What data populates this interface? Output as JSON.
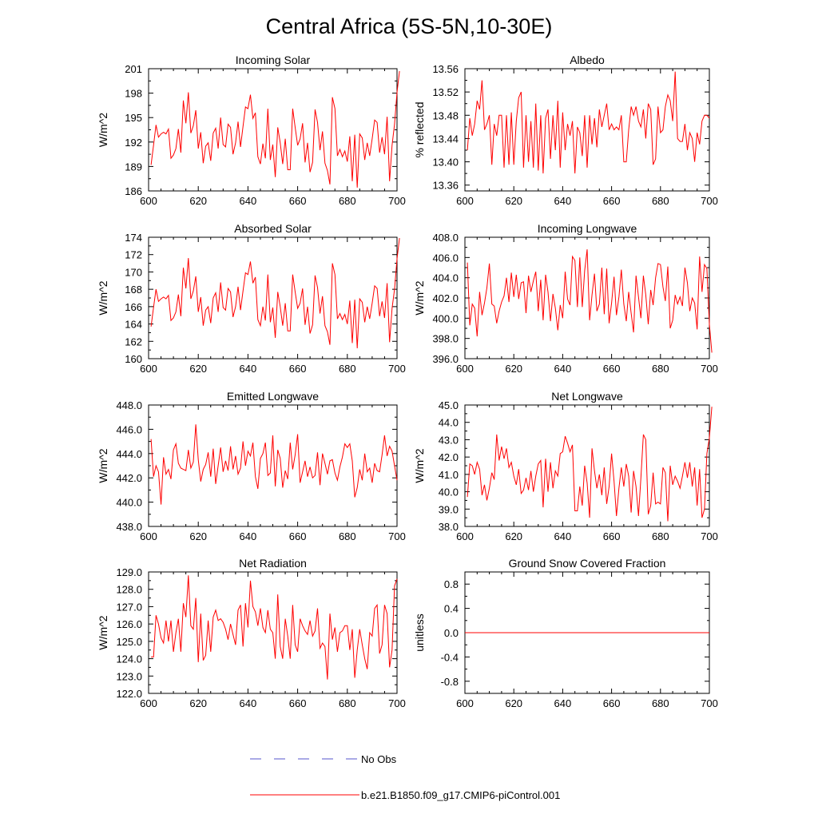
{
  "title": "Central Africa (5S-5N,10-30E)",
  "colors": {
    "model": "#ff0000",
    "obs": "#5555cc",
    "axis": "#000000"
  },
  "legend": {
    "placement": "bottom-center",
    "obs_label": "No Obs",
    "model_label": "b.e21.B1850.f09_g17.CMIP6-piControl.001"
  },
  "chart_data": [
    {
      "type": "line",
      "title": "Incoming Solar",
      "ylabel": "W/m^2",
      "xlim": [
        600,
        700
      ],
      "ylim": [
        186,
        201
      ],
      "xticks": [
        600,
        620,
        640,
        660,
        680,
        700
      ],
      "yticks": [
        186,
        189,
        192,
        195,
        198,
        201
      ],
      "ytick_labels": [
        "186",
        "189",
        "192",
        "195",
        "198",
        "201"
      ],
      "x_start": 601,
      "series": [
        {
          "values": [
            189.2,
            191.6,
            194.1,
            192.6,
            193.0,
            193.2,
            193.0,
            193.6,
            190.0,
            190.4,
            191.2,
            193.6,
            190.7,
            197.1,
            194.3,
            198.1,
            193.1,
            194.0,
            195.9,
            191.2,
            193.2,
            189.4,
            191.5,
            191.9,
            189.7,
            193.1,
            193.7,
            191.2,
            195.0,
            191.7,
            191.4,
            194.2,
            193.8,
            190.5,
            191.9,
            194.5,
            191.4,
            193.9,
            196.3,
            196.1,
            197.8,
            194.9,
            195.6,
            190.2,
            189.3,
            191.8,
            190.0,
            196.1,
            189.8,
            191.7,
            187.7,
            193.8,
            191.9,
            189.3,
            192.4,
            188.6,
            188.6,
            196.1,
            193.8,
            191.6,
            192.4,
            194.3,
            189.5,
            191.9,
            188.3,
            189.5,
            196.0,
            194.4,
            191.0,
            193.3,
            189.4,
            188.5,
            186.8,
            197.5,
            196.1,
            190.3,
            191.1,
            190.2,
            190.9,
            189.6,
            192.7,
            187.2,
            192.9,
            186.4,
            193.0,
            192.5,
            189.8,
            191.9,
            190.3,
            192.4,
            194.7,
            194.4,
            190.7,
            192.6,
            190.5,
            195.1,
            187.2,
            191.6,
            194.2,
            198.1,
            200.7
          ]
        }
      ]
    },
    {
      "type": "line",
      "title": "Albedo",
      "ylabel": "% reflected",
      "xlim": [
        600,
        700
      ],
      "ylim": [
        13.35,
        13.56
      ],
      "xticks": [
        600,
        620,
        640,
        660,
        680,
        700
      ],
      "yticks": [
        13.36,
        13.4,
        13.44,
        13.48,
        13.52,
        13.56
      ],
      "ytick_labels": [
        "13.36",
        "13.40",
        "13.44",
        "13.48",
        "13.52",
        "13.56"
      ],
      "x_start": 601,
      "series": [
        {
          "values": [
            13.42,
            13.475,
            13.445,
            13.465,
            13.505,
            13.49,
            13.54,
            13.455,
            13.465,
            13.48,
            13.395,
            13.465,
            13.445,
            13.48,
            13.48,
            13.39,
            13.48,
            13.395,
            13.485,
            13.395,
            13.47,
            13.51,
            13.52,
            13.39,
            13.48,
            13.4,
            13.47,
            13.39,
            13.5,
            13.385,
            13.48,
            13.38,
            13.475,
            13.49,
            13.405,
            13.48,
            13.42,
            13.505,
            13.39,
            13.485,
            13.42,
            13.465,
            13.445,
            13.47,
            13.38,
            13.46,
            13.45,
            13.41,
            13.48,
            13.39,
            13.48,
            13.43,
            13.475,
            13.425,
            13.49,
            13.46,
            13.48,
            13.5,
            13.455,
            13.465,
            13.455,
            13.46,
            13.455,
            13.48,
            13.4,
            13.4,
            13.455,
            13.495,
            13.48,
            13.495,
            13.47,
            13.46,
            13.49,
            13.44,
            13.5,
            13.49,
            13.395,
            13.405,
            13.495,
            13.45,
            13.455,
            13.495,
            13.515,
            13.505,
            13.47,
            13.555,
            13.44,
            13.435,
            13.435,
            13.465,
            13.42,
            13.45,
            13.44,
            13.4,
            13.45,
            13.43,
            13.47,
            13.48,
            13.48,
            13.475
          ]
        }
      ]
    },
    {
      "type": "line",
      "title": "Absorbed Solar",
      "ylabel": "W/m^2",
      "xlim": [
        600,
        700
      ],
      "ylim": [
        160,
        174
      ],
      "xticks": [
        600,
        620,
        640,
        660,
        680,
        700
      ],
      "yticks": [
        160,
        162,
        164,
        166,
        168,
        170,
        172,
        174
      ],
      "ytick_labels": [
        "160",
        "162",
        "164",
        "166",
        "168",
        "170",
        "172",
        "174"
      ],
      "x_start": 601,
      "series": [
        {
          "values": [
            163.7,
            165.9,
            168.0,
            166.6,
            166.9,
            167.1,
            166.9,
            167.3,
            164.4,
            164.7,
            165.4,
            167.4,
            164.9,
            170.5,
            168.1,
            171.6,
            166.9,
            167.8,
            169.5,
            165.4,
            167.1,
            163.8,
            165.6,
            166.0,
            164.1,
            167.0,
            167.6,
            165.4,
            168.8,
            165.9,
            165.6,
            168.1,
            167.7,
            164.8,
            166.0,
            168.3,
            165.6,
            167.8,
            169.9,
            169.7,
            171.2,
            168.7,
            169.4,
            164.5,
            163.8,
            166.0,
            164.4,
            169.7,
            164.2,
            165.9,
            162.4,
            167.7,
            166.0,
            163.8,
            166.4,
            163.2,
            163.2,
            169.7,
            167.7,
            165.8,
            166.4,
            168.1,
            163.9,
            166.0,
            162.9,
            163.9,
            169.6,
            168.2,
            165.2,
            167.2,
            163.8,
            163.1,
            161.6,
            171.0,
            169.7,
            164.6,
            165.2,
            164.5,
            165.1,
            164.0,
            166.7,
            161.8,
            166.8,
            161.2,
            166.9,
            166.5,
            164.2,
            166.0,
            164.6,
            166.4,
            168.4,
            168.1,
            164.9,
            166.6,
            164.7,
            168.7,
            161.9,
            165.8,
            168.0,
            171.5,
            173.9
          ]
        }
      ]
    },
    {
      "type": "line",
      "title": "Incoming Longwave",
      "ylabel": "W/m^2",
      "xlim": [
        600,
        700
      ],
      "ylim": [
        396,
        408
      ],
      "xticks": [
        600,
        620,
        640,
        660,
        680,
        700
      ],
      "yticks": [
        396,
        398,
        400,
        402,
        404,
        406,
        408
      ],
      "ytick_labels": [
        "396.0",
        "398.0",
        "400.0",
        "402.0",
        "404.0",
        "406.0",
        "408.0"
      ],
      "x_start": 601,
      "series": [
        {
          "values": [
            405.5,
            399.3,
            401.4,
            401.0,
            398.2,
            402.6,
            400.3,
            401.5,
            403.0,
            405.4,
            401.4,
            401.2,
            399.5,
            400.7,
            401.6,
            402.2,
            404.0,
            401.6,
            404.5,
            402.1,
            404.3,
            401.9,
            403.5,
            403.6,
            400.5,
            404.2,
            402.6,
            403.7,
            404.6,
            400.7,
            403.8,
            399.8,
            404.3,
            402.6,
            399.7,
            402.4,
            401.0,
            398.8,
            401.3,
            400.0,
            404.6,
            401.9,
            401.3,
            406.1,
            405.7,
            401.1,
            406.0,
            401.1,
            404.7,
            406.8,
            399.8,
            402.3,
            404.4,
            400.7,
            401.4,
            405.0,
            400.4,
            404.9,
            399.5,
            401.5,
            404.1,
            400.3,
            402.1,
            404.8,
            401.4,
            399.7,
            402.6,
            400.5,
            398.6,
            404.2,
            402.1,
            400.0,
            404.2,
            402.3,
            399.4,
            402.8,
            401.3,
            404.0,
            405.4,
            405.3,
            403.1,
            401.7,
            405.1,
            399.0,
            399.8,
            402.3,
            401.4,
            402.1,
            401.2,
            405.0,
            403.5,
            400.7,
            402.0,
            401.5,
            398.9,
            406.1,
            402.6,
            405.3,
            404.9,
            399.4,
            396.6
          ]
        }
      ]
    },
    {
      "type": "line",
      "title": "Emitted Longwave",
      "ylabel": "W/m^2",
      "xlim": [
        600,
        700
      ],
      "ylim": [
        438,
        448
      ],
      "xticks": [
        600,
        620,
        640,
        660,
        680,
        700
      ],
      "yticks": [
        438,
        440,
        442,
        444,
        446,
        448
      ],
      "ytick_labels": [
        "438.0",
        "440.0",
        "442.0",
        "444.0",
        "446.0",
        "448.0"
      ],
      "x_start": 601,
      "series": [
        {
          "values": [
            445.2,
            442.1,
            443.0,
            442.5,
            439.8,
            443.7,
            442.3,
            442.7,
            441.9,
            444.3,
            444.8,
            443.2,
            442.8,
            442.7,
            442.6,
            444.3,
            442.8,
            443.3,
            446.4,
            443.5,
            441.7,
            442.7,
            443.1,
            444.1,
            442.1,
            444.4,
            441.5,
            443.0,
            444.5,
            442.5,
            443.4,
            442.6,
            444.6,
            442.7,
            443.8,
            442.3,
            442.8,
            445.0,
            443.0,
            444.2,
            443.8,
            444.9,
            442.1,
            441.1,
            443.6,
            444.0,
            444.9,
            442.2,
            442.4,
            445.5,
            441.3,
            444.3,
            443.6,
            441.2,
            442.6,
            441.9,
            444.9,
            442.7,
            443.9,
            445.6,
            441.6,
            442.5,
            443.4,
            442.1,
            442.9,
            442.0,
            442.2,
            444.1,
            441.4,
            444.0,
            443.2,
            442.3,
            443.4,
            443.5,
            442.4,
            441.8,
            442.9,
            443.7,
            444.8,
            444.5,
            444.8,
            443.4,
            440.4,
            441.2,
            442.7,
            441.8,
            444.0,
            442.5,
            442.8,
            441.6,
            443.2,
            442.6,
            442.5,
            443.9,
            445.5,
            443.8,
            444.6,
            444.2,
            443.0,
            441.8
          ]
        }
      ]
    },
    {
      "type": "line",
      "title": "Net Longwave",
      "ylabel": "W/m^2",
      "xlim": [
        600,
        700
      ],
      "ylim": [
        38,
        45
      ],
      "xticks": [
        600,
        620,
        640,
        660,
        680,
        700
      ],
      "yticks": [
        38,
        39,
        40,
        41,
        42,
        43,
        44,
        45
      ],
      "ytick_labels": [
        "38.0",
        "39.0",
        "40.0",
        "41.0",
        "42.0",
        "43.0",
        "44.0",
        "45.0"
      ],
      "x_start": 601,
      "series": [
        {
          "values": [
            39.7,
            41.6,
            41.5,
            41.0,
            41.7,
            41.3,
            39.8,
            40.4,
            39.5,
            40.2,
            41.1,
            40.7,
            43.3,
            41.8,
            42.6,
            41.9,
            42.5,
            41.4,
            41.7,
            40.9,
            40.4,
            41.3,
            39.9,
            40.1,
            40.8,
            40.1,
            41.2,
            40.0,
            40.9,
            41.6,
            41.8,
            39.1,
            41.9,
            40.0,
            41.7,
            40.2,
            41.2,
            40.9,
            42.2,
            42.3,
            43.2,
            42.8,
            42.3,
            42.7,
            38.9,
            38.9,
            40.3,
            39.2,
            41.5,
            40.5,
            38.5,
            42.5,
            41.2,
            40.2,
            41.0,
            39.8,
            41.4,
            39.3,
            40.3,
            42.2,
            40.6,
            38.6,
            40.2,
            41.4,
            40.3,
            41.6,
            40.9,
            38.8,
            41.2,
            40.3,
            38.6,
            40.8,
            43.3,
            43.0,
            38.7,
            39.2,
            41.1,
            39.3,
            39.4,
            39.3,
            41.4,
            41.1,
            38.3,
            41.5,
            40.4,
            40.9,
            40.6,
            40.2,
            40.9,
            41.7,
            40.8,
            41.7,
            40.3,
            41.4,
            39.2,
            41.3,
            38.5,
            39.0,
            42.2,
            43.1,
            44.9
          ]
        }
      ]
    },
    {
      "type": "line",
      "title": "Net Radiation",
      "ylabel": "W/m^2",
      "xlim": [
        600,
        700
      ],
      "ylim": [
        122,
        129
      ],
      "xticks": [
        600,
        620,
        640,
        660,
        680,
        700
      ],
      "yticks": [
        122,
        123,
        124,
        125,
        126,
        127,
        128,
        129
      ],
      "ytick_labels": [
        "122.0",
        "123.0",
        "124.0",
        "125.0",
        "126.0",
        "127.0",
        "128.0",
        "129.0"
      ],
      "x_start": 601,
      "series": [
        {
          "values": [
            124.1,
            124.1,
            126.5,
            126.0,
            125.2,
            124.9,
            126.2,
            125.0,
            126.2,
            124.4,
            125.5,
            126.3,
            124.4,
            127.2,
            126.4,
            128.8,
            125.9,
            125.7,
            127.5,
            123.8,
            126.6,
            123.9,
            124.2,
            126.2,
            124.4,
            126.4,
            126.8,
            126.2,
            126.3,
            126.1,
            125.7,
            125.1,
            126.0,
            125.4,
            124.8,
            126.8,
            127.1,
            124.7,
            127.2,
            125.8,
            128.5,
            127.0,
            126.7,
            125.9,
            126.9,
            125.8,
            125.5,
            126.8,
            125.7,
            125.5,
            124.0,
            127.7,
            124.7,
            124.0,
            126.3,
            125.3,
            124.0,
            127.1,
            124.8,
            124.4,
            126.3,
            125.9,
            125.6,
            125.4,
            126.2,
            125.3,
            125.6,
            126.9,
            124.6,
            124.9,
            124.7,
            122.8,
            126.6,
            125.1,
            125.8,
            124.4,
            125.5,
            125.6,
            125.9,
            125.9,
            124.5,
            125.7,
            122.9,
            124.5,
            125.7,
            124.8,
            124.0,
            123.4,
            125.5,
            125.3,
            126.9,
            127.1,
            124.3,
            124.8,
            127.1,
            126.6,
            123.5,
            124.5,
            128.2,
            128.6
          ]
        }
      ]
    },
    {
      "type": "line",
      "title": "Ground Snow Covered Fraction",
      "ylabel": "unitless",
      "xlim": [
        600,
        700
      ],
      "ylim": [
        -1.0,
        1.0
      ],
      "xticks": [
        600,
        620,
        640,
        660,
        680,
        700
      ],
      "yticks": [
        -0.8,
        -0.4,
        0.0,
        0.4,
        0.8
      ],
      "ytick_labels": [
        "-0.8",
        "-0.4",
        "0.0",
        "0.4",
        "0.8"
      ],
      "x_start": 600,
      "series": [
        {
          "values": [
            0,
            0
          ]
        }
      ],
      "x_values": [
        600,
        700
      ]
    }
  ]
}
